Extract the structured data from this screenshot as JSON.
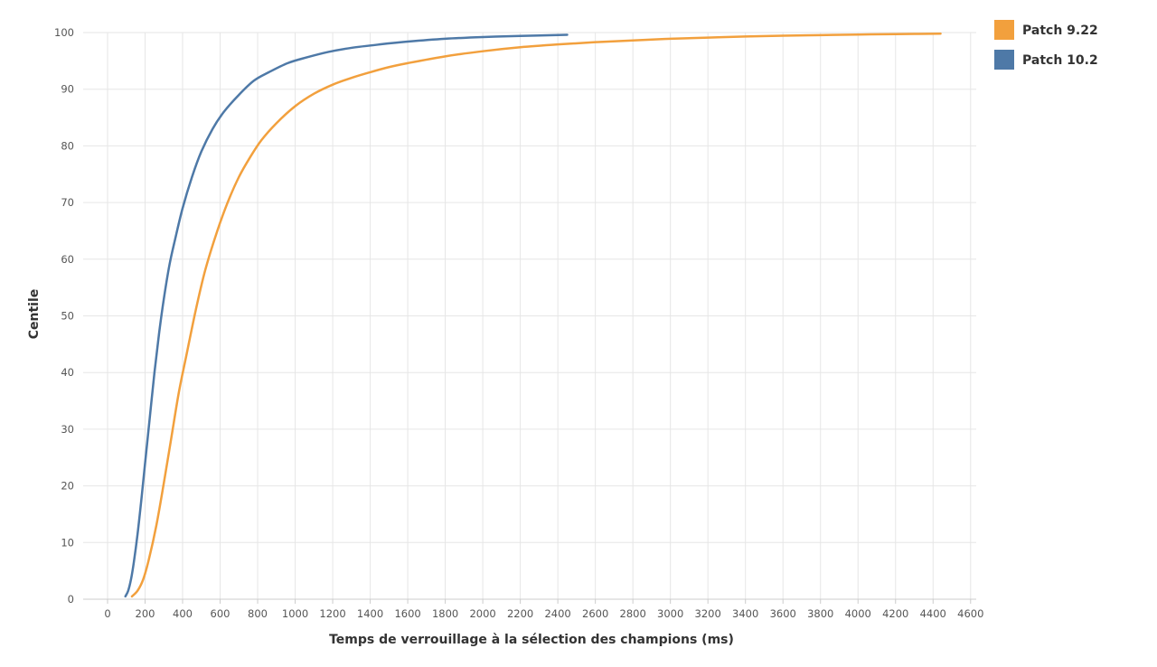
{
  "chart_data": {
    "type": "line",
    "xlabel": "Temps de verrouillage à la sélection des champions (ms)",
    "ylabel": "Centile",
    "xlim": [
      -130,
      4630
    ],
    "ylim": [
      0,
      100
    ],
    "x_ticks": [
      0,
      200,
      400,
      600,
      800,
      1000,
      1200,
      1400,
      1600,
      1800,
      2000,
      2200,
      2400,
      2600,
      2800,
      3000,
      3200,
      3400,
      3600,
      3800,
      4000,
      4200,
      4400,
      4600
    ],
    "y_ticks": [
      0,
      10,
      20,
      30,
      40,
      50,
      60,
      70,
      80,
      90,
      100
    ],
    "grid": true,
    "legend_position": "top-right",
    "series": [
      {
        "name": "Patch 9.22",
        "color": "#f2a03d",
        "x": [
          130,
          160,
          190,
          220,
          260,
          300,
          340,
          380,
          420,
          470,
          520,
          580,
          640,
          700,
          760,
          820,
          900,
          1000,
          1100,
          1200,
          1300,
          1400,
          1500,
          1600,
          1800,
          2000,
          2200,
          2400,
          2600,
          2800,
          3000,
          3200,
          3400,
          3600,
          3800,
          4000,
          4200,
          4440
        ],
        "y": [
          0.5,
          1.5,
          3.5,
          7,
          13,
          20.5,
          28.5,
          36.5,
          43,
          51,
          58,
          64.5,
          70,
          74.5,
          78,
          81,
          84,
          87,
          89.2,
          90.8,
          92,
          93,
          93.9,
          94.6,
          95.8,
          96.7,
          97.4,
          97.9,
          98.3,
          98.6,
          98.9,
          99.1,
          99.3,
          99.45,
          99.55,
          99.65,
          99.72,
          99.8
        ]
      },
      {
        "name": "Patch 10.2",
        "color": "#4e79a7",
        "x": [
          95,
          110,
          125,
          140,
          160,
          180,
          200,
          225,
          250,
          275,
          300,
          330,
          360,
          400,
          450,
          500,
          560,
          620,
          700,
          780,
          860,
          960,
          1060,
          1180,
          1300,
          1450,
          1600,
          1800,
          2000,
          2200,
          2450
        ],
        "y": [
          0.5,
          1.5,
          3.5,
          6.5,
          11.5,
          17.5,
          24,
          32,
          40,
          47,
          53,
          59,
          63.5,
          69,
          74.5,
          79,
          83,
          86,
          89,
          91.5,
          93,
          94.6,
          95.6,
          96.6,
          97.3,
          97.9,
          98.4,
          98.9,
          99.2,
          99.4,
          99.6
        ]
      }
    ]
  }
}
